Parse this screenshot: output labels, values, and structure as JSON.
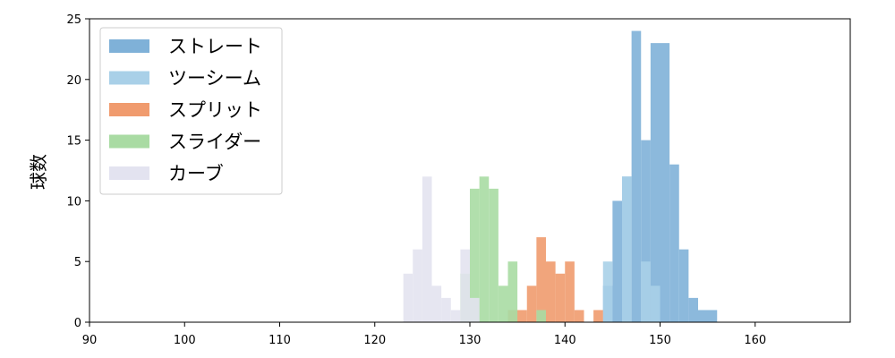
{
  "chart_data": {
    "type": "bar",
    "histogram": true,
    "ylabel": "球数",
    "xlim": [
      90,
      170
    ],
    "ylim": [
      0,
      25
    ],
    "xticks": [
      90,
      100,
      110,
      120,
      130,
      140,
      150,
      160
    ],
    "yticks": [
      0,
      5,
      10,
      15,
      20,
      25
    ],
    "legend_position": "top-left",
    "grid": false,
    "series": [
      {
        "name": "ストレート",
        "color": "#7fb1d8",
        "bins": [
          {
            "x0": 144,
            "x1": 145,
            "count": 3
          },
          {
            "x0": 145,
            "x1": 146,
            "count": 10
          },
          {
            "x0": 146,
            "x1": 147,
            "count": 12
          },
          {
            "x0": 147,
            "x1": 148,
            "count": 24
          },
          {
            "x0": 148,
            "x1": 149,
            "count": 15
          },
          {
            "x0": 149,
            "x1": 150,
            "count": 23
          },
          {
            "x0": 150,
            "x1": 151,
            "count": 23
          },
          {
            "x0": 151,
            "x1": 152,
            "count": 13
          },
          {
            "x0": 152,
            "x1": 153,
            "count": 6
          },
          {
            "x0": 153,
            "x1": 154,
            "count": 2
          },
          {
            "x0": 154,
            "x1": 156,
            "count": 1
          }
        ]
      },
      {
        "name": "ツーシーム",
        "color": "#a9d0e8",
        "bins": [
          {
            "x0": 144,
            "x1": 145,
            "count": 5
          },
          {
            "x0": 146,
            "x1": 147,
            "count": 12
          },
          {
            "x0": 148,
            "x1": 149,
            "count": 5
          },
          {
            "x0": 149,
            "x1": 150,
            "count": 3
          }
        ]
      },
      {
        "name": "スプリット",
        "color": "#f09b6e",
        "bins": [
          {
            "x0": 134,
            "x1": 136,
            "count": 1
          },
          {
            "x0": 136,
            "x1": 137,
            "count": 3
          },
          {
            "x0": 137,
            "x1": 138,
            "count": 7
          },
          {
            "x0": 138,
            "x1": 139,
            "count": 5
          },
          {
            "x0": 139,
            "x1": 140,
            "count": 4
          },
          {
            "x0": 140,
            "x1": 141,
            "count": 5
          },
          {
            "x0": 141,
            "x1": 142,
            "count": 1
          },
          {
            "x0": 143,
            "x1": 144,
            "count": 1
          }
        ]
      },
      {
        "name": "スライダー",
        "color": "#a9dba3",
        "bins": [
          {
            "x0": 129,
            "x1": 130,
            "count": 4
          },
          {
            "x0": 130,
            "x1": 131,
            "count": 11
          },
          {
            "x0": 131,
            "x1": 132,
            "count": 12
          },
          {
            "x0": 132,
            "x1": 133,
            "count": 11
          },
          {
            "x0": 133,
            "x1": 134,
            "count": 3
          },
          {
            "x0": 134,
            "x1": 135,
            "count": 5
          },
          {
            "x0": 137,
            "x1": 138,
            "count": 1
          }
        ]
      },
      {
        "name": "カーブ",
        "color": "#e3e3f0",
        "bins": [
          {
            "x0": 123,
            "x1": 124,
            "count": 4
          },
          {
            "x0": 124,
            "x1": 125,
            "count": 6
          },
          {
            "x0": 125,
            "x1": 126,
            "count": 12
          },
          {
            "x0": 126,
            "x1": 127,
            "count": 3
          },
          {
            "x0": 127,
            "x1": 128,
            "count": 2
          },
          {
            "x0": 128,
            "x1": 129,
            "count": 1
          },
          {
            "x0": 129,
            "x1": 130,
            "count": 6
          },
          {
            "x0": 130,
            "x1": 131,
            "count": 2
          }
        ]
      }
    ]
  }
}
